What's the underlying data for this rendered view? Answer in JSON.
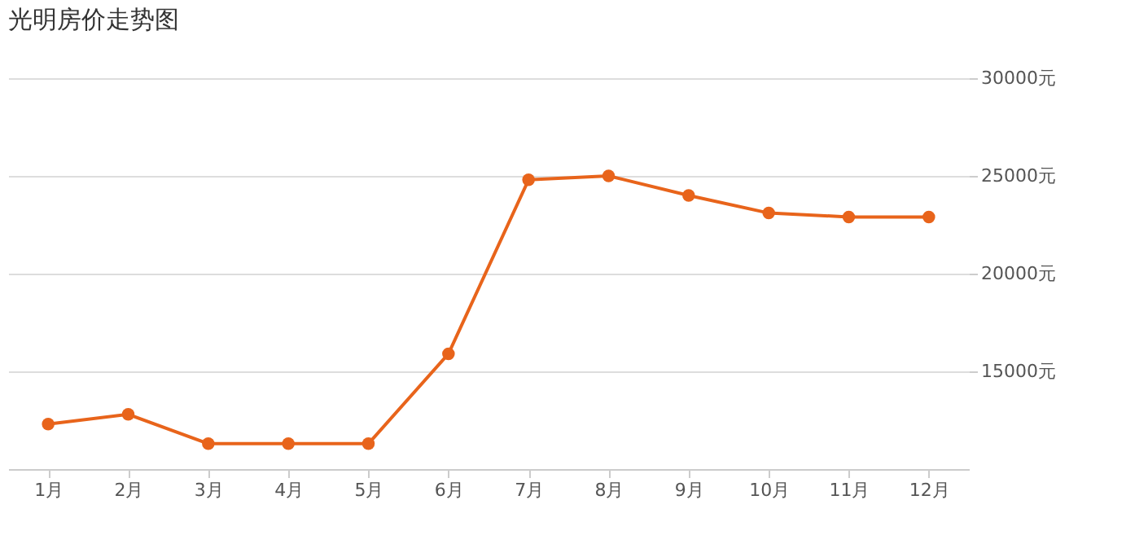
{
  "chart_data": {
    "type": "line",
    "title": "光明房价走势图",
    "categories": [
      "1月",
      "2月",
      "3月",
      "4月",
      "5月",
      "6月",
      "7月",
      "8月",
      "9月",
      "10月",
      "11月",
      "12月"
    ],
    "series": [
      {
        "color": "#e8641b",
        "values": [
          12300,
          12800,
          11300,
          11300,
          11300,
          15900,
          24800,
          25000,
          24000,
          23100,
          22900,
          22900
        ]
      }
    ],
    "ylim": [
      10000,
      30000
    ],
    "yticks": [
      {
        "value": 15000,
        "label": "15000元"
      },
      {
        "value": 20000,
        "label": "20000元"
      },
      {
        "value": 25000,
        "label": "25000元"
      },
      {
        "value": 30000,
        "label": "30000元"
      }
    ],
    "grid": "y",
    "marker": "circle",
    "line_style": "solid"
  }
}
